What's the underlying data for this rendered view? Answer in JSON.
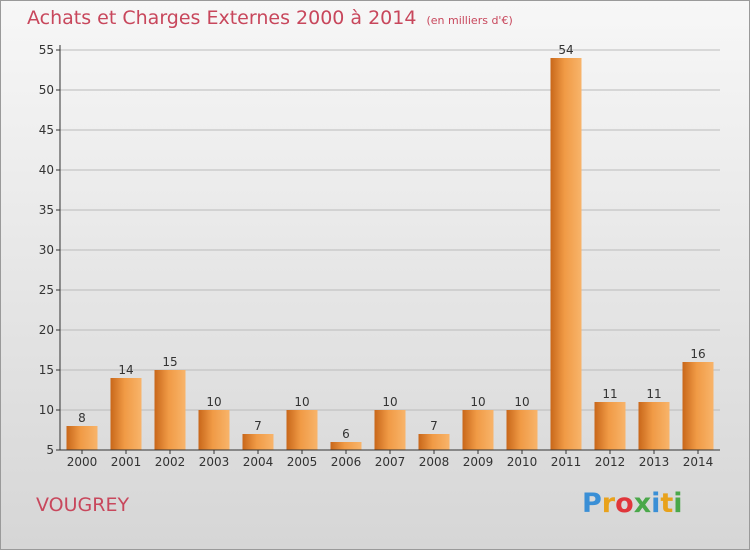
{
  "header": {
    "title": "Achats et Charges Externes 2000 à 2014",
    "subtitle": "(en milliers d'€)"
  },
  "footer": {
    "commune": "VOUGREY",
    "brand": "Proxiti"
  },
  "colors": {
    "title": "#c8475c",
    "bar_light": "#f4a552",
    "bar_dark": "#c8671a",
    "axis": "#333333",
    "grid": "#bbbbbb"
  },
  "chart_data": {
    "type": "bar",
    "title": "Achats et Charges Externes 2000 à 2014",
    "subtitle": "(en milliers d'€)",
    "xlabel": "",
    "ylabel": "",
    "categories": [
      "2000",
      "2001",
      "2002",
      "2003",
      "2004",
      "2005",
      "2006",
      "2007",
      "2008",
      "2009",
      "2010",
      "2011",
      "2012",
      "2013",
      "2014"
    ],
    "values": [
      8,
      14,
      15,
      10,
      7,
      10,
      6,
      10,
      7,
      10,
      10,
      54,
      11,
      11,
      16
    ],
    "ylim": [
      5,
      55
    ],
    "yticks": [
      5,
      10,
      15,
      20,
      25,
      30,
      35,
      40,
      45,
      50,
      55
    ],
    "grid": true,
    "data_labels": true
  }
}
